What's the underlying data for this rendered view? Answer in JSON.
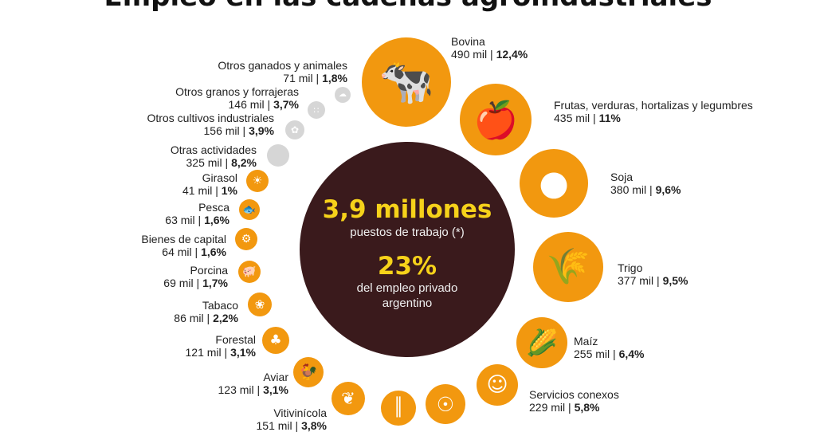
{
  "title": "Empleo en las cadenas agroindustriales",
  "center": {
    "big1": "3,9 millones",
    "sub1": "puestos de trabajo (*)",
    "big2": "23%",
    "sub2": "del empleo privado",
    "sub3": "argentino"
  },
  "colors": {
    "orange": "#f2980f",
    "grey": "#d6d6d6",
    "center": "#3a1a1c",
    "highlight": "#f6d21a"
  },
  "chart_data": {
    "type": "bubble",
    "unit": "mil puestos de trabajo",
    "categories": [
      {
        "name": "Bovina",
        "jobs_thousands": 490,
        "jobs_label": "490 mil",
        "share_label": "12,4%",
        "icon": "cow-icon"
      },
      {
        "name": "Frutas, verduras, hortalizas y legumbres",
        "jobs_thousands": 435,
        "jobs_label": "435 mil",
        "share_label": "11%",
        "icon": "fruit-icon"
      },
      {
        "name": "Soja",
        "jobs_thousands": 380,
        "jobs_label": "380 mil",
        "share_label": "9,6%",
        "icon": "soy-icon"
      },
      {
        "name": "Trigo",
        "jobs_thousands": 377,
        "jobs_label": "377 mil",
        "share_label": "9,5%",
        "icon": "wheat-icon"
      },
      {
        "name": "Maíz",
        "jobs_thousands": 255,
        "jobs_label": "255 mil",
        "share_label": "6,4%",
        "icon": "corn-icon"
      },
      {
        "name": "Servicios conexos",
        "jobs_thousands": 229,
        "jobs_label": "229 mil",
        "share_label": "5,8%",
        "icon": "people-icon"
      },
      {
        "name": "",
        "jobs_thousands": null,
        "jobs_label": "",
        "share_label": "",
        "icon": "dairy-cow-icon"
      },
      {
        "name": "",
        "jobs_thousands": null,
        "jobs_label": "",
        "share_label": "",
        "icon": "sugarcane-icon"
      },
      {
        "name": "Vitivinícola",
        "jobs_thousands": 151,
        "jobs_label": "151 mil",
        "share_label": "3,8%",
        "icon": "grapes-icon"
      },
      {
        "name": "Aviar",
        "jobs_thousands": 123,
        "jobs_label": "123 mil",
        "share_label": "3,1%",
        "icon": "chicken-icon"
      },
      {
        "name": "Forestal",
        "jobs_thousands": 121,
        "jobs_label": "121 mil",
        "share_label": "3,1%",
        "icon": "trees-icon"
      },
      {
        "name": "Tabaco",
        "jobs_thousands": 86,
        "jobs_label": "86 mil",
        "share_label": "2,2%",
        "icon": "tobacco-leaf-icon"
      },
      {
        "name": "Porcina",
        "jobs_thousands": 69,
        "jobs_label": "69 mil",
        "share_label": "1,7%",
        "icon": "pig-icon"
      },
      {
        "name": "Bienes de capital",
        "jobs_thousands": 64,
        "jobs_label": "64 mil",
        "share_label": "1,6%",
        "icon": "tractor-icon"
      },
      {
        "name": "Pesca",
        "jobs_thousands": 63,
        "jobs_label": "63 mil",
        "share_label": "1,6%",
        "icon": "fish-icon"
      },
      {
        "name": "Girasol",
        "jobs_thousands": 41,
        "jobs_label": "41 mil",
        "share_label": "1%",
        "icon": "sunflower-icon"
      },
      {
        "name": "Otras actividades",
        "jobs_thousands": 325,
        "jobs_label": "325 mil",
        "share_label": "8,2%",
        "icon": "none"
      },
      {
        "name": "Otros cultivos industriales",
        "jobs_thousands": 156,
        "jobs_label": "156 mil",
        "share_label": "3,9%",
        "icon": "cotton-icon"
      },
      {
        "name": "Otros granos y forrajeras",
        "jobs_thousands": 146,
        "jobs_label": "146 mil",
        "share_label": "3,7%",
        "icon": "grain-icon"
      },
      {
        "name": "Otros ganados y animales",
        "jobs_thousands": 71,
        "jobs_label": "71 mil",
        "share_label": "1,8%",
        "icon": "sheep-icon"
      }
    ]
  }
}
